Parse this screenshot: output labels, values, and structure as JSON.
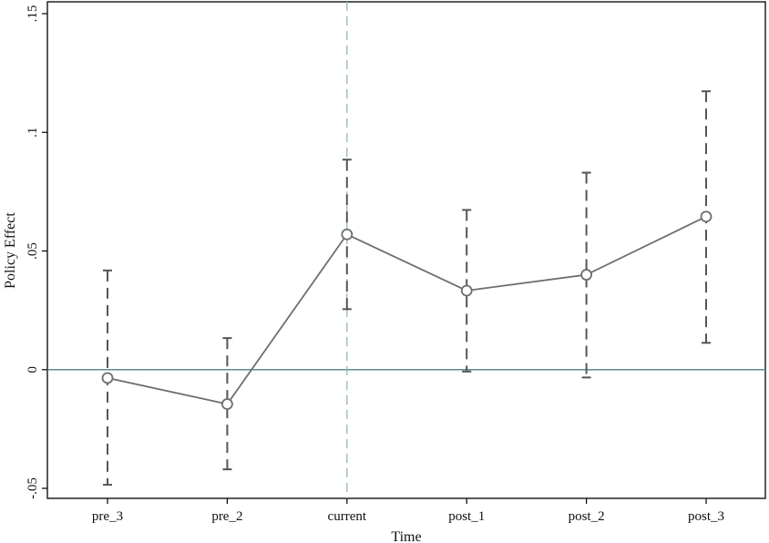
{
  "chart_data": {
    "type": "line",
    "title": "",
    "xlabel": "Time",
    "ylabel": "Policy Effect",
    "categories": [
      "pre_3",
      "pre_2",
      "current",
      "post_1",
      "post_2",
      "post_3"
    ],
    "series": [
      {
        "values": [
          -0.0035,
          -0.0145,
          0.057,
          0.0333,
          0.04,
          0.0645
        ],
        "ci_lower": [
          -0.0485,
          -0.042,
          0.0255,
          -0.0008,
          -0.0033,
          0.0113
        ],
        "ci_upper": [
          0.0418,
          0.0133,
          0.0885,
          0.0673,
          0.083,
          0.1173
        ]
      }
    ],
    "ylim": [
      -0.055,
      0.155
    ],
    "yticks": [
      -0.05,
      0,
      0.05,
      0.1,
      0.15
    ],
    "ytick_labels": [
      "-.05",
      "0",
      ".05",
      ".1",
      ".15"
    ],
    "reference_line_y": 0,
    "reference_line_x": "current",
    "grid": false,
    "colors": {
      "line": "#6e6e6e",
      "ci": "#555555",
      "hline": "#5b8a96",
      "vline": "#8fb8b8",
      "frame": "#000000"
    }
  }
}
